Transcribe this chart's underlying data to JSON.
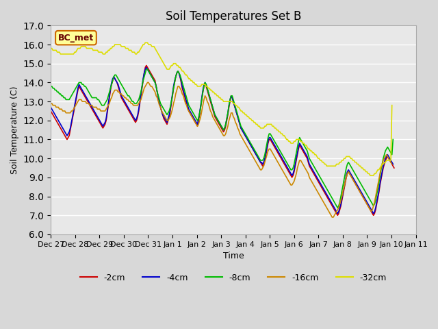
{
  "title": "Soil Temperatures Set B",
  "xlabel": "Time",
  "ylabel": "Soil Temperature (C)",
  "ylim": [
    6.0,
    17.0
  ],
  "yticks": [
    6.0,
    7.0,
    8.0,
    9.0,
    10.0,
    11.0,
    12.0,
    13.0,
    14.0,
    15.0,
    16.0,
    17.0
  ],
  "background_color": "#e8e8e8",
  "plot_bg_color": "#e8e8e8",
  "grid_color": "#ffffff",
  "annotation_text": "BC_met",
  "annotation_bg": "#ffff99",
  "annotation_border": "#cc6600",
  "annotation_text_color": "#660000",
  "colors": {
    "-2cm": "#cc0000",
    "-4cm": "#0000cc",
    "-8cm": "#00bb00",
    "-16cm": "#cc8800",
    "-32cm": "#dddd00"
  },
  "legend_labels": [
    "-2cm",
    "-4cm",
    "-8cm",
    "-16cm",
    "-32cm"
  ],
  "xtick_labels": [
    "Dec 27",
    "Dec 28",
    "Dec 29",
    "Dec 30",
    "Dec 31",
    "Jan 1",
    "Jan 2",
    "Jan 3",
    "Jan 4",
    "Jan 5",
    "Jan 6",
    "Jan 7",
    "Jan 8",
    "Jan 9",
    "Jan 10",
    "Jan 11"
  ],
  "num_points": 337,
  "series": {
    "-2cm": [
      12.5,
      12.4,
      12.3,
      12.2,
      12.1,
      12.0,
      11.9,
      11.8,
      11.7,
      11.6,
      11.5,
      11.4,
      11.3,
      11.2,
      11.1,
      11.0,
      11.1,
      11.2,
      11.5,
      11.8,
      12.1,
      12.4,
      12.7,
      13.0,
      13.3,
      13.6,
      13.8,
      13.7,
      13.6,
      13.5,
      13.4,
      13.3,
      13.2,
      13.1,
      13.0,
      12.9,
      12.8,
      12.7,
      12.6,
      12.5,
      12.4,
      12.3,
      12.2,
      12.1,
      12.0,
      11.9,
      11.8,
      11.7,
      11.6,
      11.7,
      11.8,
      12.0,
      12.4,
      12.8,
      13.2,
      13.6,
      13.9,
      14.1,
      14.3,
      14.2,
      14.1,
      14.0,
      13.8,
      13.6,
      13.4,
      13.2,
      13.1,
      13.0,
      12.9,
      12.8,
      12.7,
      12.6,
      12.5,
      12.4,
      12.3,
      12.2,
      12.1,
      12.0,
      11.9,
      12.0,
      12.2,
      12.5,
      12.9,
      13.3,
      13.7,
      14.1,
      14.5,
      14.8,
      14.9,
      14.8,
      14.7,
      14.6,
      14.5,
      14.4,
      14.3,
      14.2,
      14.1,
      13.8,
      13.5,
      13.2,
      12.9,
      12.7,
      12.5,
      12.3,
      12.1,
      12.0,
      11.9,
      11.8,
      12.0,
      12.2,
      12.5,
      12.9,
      13.3,
      13.7,
      14.0,
      14.3,
      14.5,
      14.6,
      14.5,
      14.3,
      14.0,
      13.7,
      13.5,
      13.3,
      13.1,
      12.9,
      12.7,
      12.5,
      12.4,
      12.3,
      12.2,
      12.1,
      12.0,
      11.9,
      11.8,
      11.7,
      12.0,
      12.3,
      12.7,
      13.1,
      13.5,
      13.8,
      13.9,
      13.8,
      13.6,
      13.4,
      13.2,
      13.0,
      12.8,
      12.6,
      12.4,
      12.2,
      12.1,
      12.0,
      11.9,
      11.8,
      11.7,
      11.6,
      11.5,
      11.4,
      11.5,
      11.7,
      12.0,
      12.3,
      12.7,
      13.0,
      13.3,
      13.2,
      13.0,
      12.8,
      12.6,
      12.4,
      12.2,
      12.0,
      11.8,
      11.6,
      11.5,
      11.4,
      11.3,
      11.2,
      11.1,
      11.0,
      10.9,
      10.8,
      10.7,
      10.6,
      10.5,
      10.4,
      10.3,
      10.2,
      10.1,
      10.0,
      9.9,
      9.8,
      9.7,
      9.6,
      9.7,
      9.9,
      10.2,
      10.5,
      10.8,
      11.0,
      11.0,
      10.9,
      10.8,
      10.7,
      10.6,
      10.5,
      10.4,
      10.3,
      10.2,
      10.1,
      10.0,
      9.9,
      9.8,
      9.7,
      9.6,
      9.5,
      9.4,
      9.3,
      9.2,
      9.1,
      9.0,
      9.1,
      9.3,
      9.6,
      9.9,
      10.2,
      10.5,
      10.7,
      10.6,
      10.5,
      10.4,
      10.3,
      10.2,
      10.1,
      10.0,
      9.8,
      9.6,
      9.5,
      9.4,
      9.3,
      9.2,
      9.1,
      9.0,
      8.9,
      8.8,
      8.7,
      8.6,
      8.5,
      8.4,
      8.3,
      8.2,
      8.1,
      8.0,
      7.9,
      7.8,
      7.7,
      7.6,
      7.5,
      7.4,
      7.3,
      7.2,
      7.1,
      7.0,
      7.1,
      7.3,
      7.5,
      7.8,
      8.1,
      8.4,
      8.7,
      9.0,
      9.2,
      9.3,
      9.2,
      9.1,
      9.0,
      8.9,
      8.8,
      8.7,
      8.6,
      8.5,
      8.4,
      8.3,
      8.2,
      8.1,
      8.0,
      7.9,
      7.8,
      7.7,
      7.6,
      7.5,
      7.4,
      7.3,
      7.2,
      7.1,
      7.0,
      7.1,
      7.3,
      7.6,
      7.9,
      8.2,
      8.6,
      8.9,
      9.2,
      9.5,
      9.7,
      9.9,
      10.0,
      10.1,
      10.0,
      9.9,
      9.8,
      9.7,
      9.6,
      9.5
    ],
    "-4cm": [
      12.7,
      12.6,
      12.5,
      12.4,
      12.3,
      12.2,
      12.1,
      12.0,
      11.9,
      11.8,
      11.7,
      11.6,
      11.5,
      11.4,
      11.3,
      11.2,
      11.3,
      11.4,
      11.6,
      11.9,
      12.2,
      12.5,
      12.8,
      13.1,
      13.4,
      13.7,
      13.9,
      13.8,
      13.7,
      13.6,
      13.5,
      13.4,
      13.3,
      13.2,
      13.1,
      13.0,
      12.9,
      12.8,
      12.7,
      12.6,
      12.5,
      12.4,
      12.3,
      12.2,
      12.1,
      12.0,
      11.9,
      11.8,
      11.7,
      11.8,
      11.9,
      12.1,
      12.5,
      12.9,
      13.3,
      13.7,
      14.0,
      14.2,
      14.3,
      14.2,
      14.1,
      14.0,
      13.9,
      13.7,
      13.5,
      13.3,
      13.2,
      13.1,
      13.0,
      12.9,
      12.8,
      12.7,
      12.6,
      12.5,
      12.4,
      12.3,
      12.2,
      12.1,
      12.0,
      12.1,
      12.3,
      12.6,
      13.0,
      13.4,
      13.8,
      14.2,
      14.5,
      14.7,
      14.8,
      14.7,
      14.6,
      14.5,
      14.4,
      14.3,
      14.2,
      14.1,
      14.0,
      13.8,
      13.5,
      13.2,
      12.9,
      12.7,
      12.5,
      12.3,
      12.2,
      12.1,
      12.0,
      11.9,
      12.1,
      12.3,
      12.6,
      13.0,
      13.4,
      13.8,
      14.1,
      14.3,
      14.5,
      14.6,
      14.5,
      14.3,
      14.1,
      13.8,
      13.6,
      13.4,
      13.2,
      13.0,
      12.8,
      12.6,
      12.5,
      12.4,
      12.3,
      12.2,
      12.1,
      12.0,
      11.9,
      11.8,
      12.1,
      12.4,
      12.8,
      13.2,
      13.6,
      13.9,
      14.0,
      13.9,
      13.7,
      13.5,
      13.3,
      13.1,
      12.9,
      12.7,
      12.5,
      12.3,
      12.2,
      12.1,
      12.0,
      11.9,
      11.8,
      11.7,
      11.6,
      11.5,
      11.6,
      11.8,
      12.1,
      12.4,
      12.8,
      13.1,
      13.3,
      13.2,
      13.0,
      12.8,
      12.6,
      12.4,
      12.2,
      12.0,
      11.8,
      11.6,
      11.5,
      11.4,
      11.3,
      11.2,
      11.1,
      11.0,
      10.9,
      10.8,
      10.7,
      10.6,
      10.5,
      10.4,
      10.3,
      10.2,
      10.1,
      10.0,
      9.9,
      9.8,
      9.8,
      9.7,
      9.8,
      10.0,
      10.3,
      10.6,
      10.9,
      11.1,
      11.1,
      11.0,
      10.9,
      10.8,
      10.7,
      10.6,
      10.5,
      10.4,
      10.3,
      10.2,
      10.1,
      10.0,
      9.9,
      9.8,
      9.7,
      9.6,
      9.5,
      9.4,
      9.3,
      9.2,
      9.1,
      9.2,
      9.4,
      9.7,
      10.0,
      10.3,
      10.6,
      10.8,
      10.7,
      10.6,
      10.5,
      10.4,
      10.3,
      10.2,
      10.1,
      9.9,
      9.7,
      9.6,
      9.5,
      9.4,
      9.3,
      9.2,
      9.1,
      9.0,
      8.9,
      8.8,
      8.7,
      8.6,
      8.5,
      8.4,
      8.3,
      8.2,
      8.1,
      8.0,
      7.9,
      7.8,
      7.7,
      7.6,
      7.5,
      7.4,
      7.3,
      7.2,
      7.1,
      7.2,
      7.4,
      7.6,
      7.9,
      8.2,
      8.5,
      8.8,
      9.1,
      9.3,
      9.4,
      9.3,
      9.2,
      9.1,
      9.0,
      8.9,
      8.8,
      8.7,
      8.6,
      8.5,
      8.4,
      8.3,
      8.2,
      8.1,
      8.0,
      7.9,
      7.8,
      7.7,
      7.6,
      7.5,
      7.4,
      7.3,
      7.2,
      7.1,
      7.2,
      7.4,
      7.7,
      8.0,
      8.3,
      8.7,
      9.0,
      9.3,
      9.6,
      9.8,
      10.0,
      10.1,
      10.2,
      10.1,
      10.0,
      9.9,
      9.8,
      9.7
    ],
    "-8cm": [
      13.8,
      13.8,
      13.7,
      13.7,
      13.6,
      13.6,
      13.5,
      13.5,
      13.4,
      13.4,
      13.3,
      13.3,
      13.2,
      13.2,
      13.1,
      13.1,
      13.1,
      13.1,
      13.2,
      13.3,
      13.4,
      13.5,
      13.6,
      13.7,
      13.8,
      13.9,
      14.0,
      14.0,
      14.0,
      13.9,
      13.9,
      13.8,
      13.8,
      13.7,
      13.6,
      13.5,
      13.4,
      13.3,
      13.2,
      13.2,
      13.2,
      13.2,
      13.2,
      13.1,
      13.1,
      13.0,
      12.9,
      12.8,
      12.8,
      12.8,
      12.9,
      13.0,
      13.1,
      13.3,
      13.5,
      13.7,
      13.9,
      14.1,
      14.3,
      14.4,
      14.4,
      14.3,
      14.2,
      14.1,
      14.0,
      13.9,
      13.8,
      13.7,
      13.6,
      13.5,
      13.4,
      13.3,
      13.3,
      13.2,
      13.1,
      13.0,
      13.0,
      12.9,
      12.9,
      12.9,
      13.0,
      13.1,
      13.3,
      13.5,
      13.8,
      14.1,
      14.3,
      14.5,
      14.7,
      14.7,
      14.6,
      14.5,
      14.4,
      14.3,
      14.2,
      14.1,
      14.0,
      13.8,
      13.5,
      13.3,
      13.1,
      12.9,
      12.8,
      12.7,
      12.6,
      12.5,
      12.4,
      12.3,
      12.4,
      12.5,
      12.7,
      13.0,
      13.3,
      13.7,
      14.0,
      14.3,
      14.5,
      14.6,
      14.5,
      14.4,
      14.2,
      14.0,
      13.8,
      13.6,
      13.4,
      13.2,
      13.0,
      12.8,
      12.7,
      12.6,
      12.5,
      12.4,
      12.3,
      12.2,
      12.1,
      12.0,
      12.1,
      12.4,
      12.7,
      13.1,
      13.5,
      13.8,
      14.0,
      13.9,
      13.7,
      13.5,
      13.3,
      13.1,
      12.9,
      12.7,
      12.5,
      12.3,
      12.2,
      12.1,
      12.0,
      11.9,
      11.8,
      11.7,
      11.6,
      11.5,
      11.6,
      11.8,
      12.1,
      12.4,
      12.8,
      13.1,
      13.3,
      13.3,
      13.1,
      12.9,
      12.7,
      12.5,
      12.3,
      12.1,
      11.9,
      11.7,
      11.6,
      11.5,
      11.4,
      11.3,
      11.2,
      11.1,
      11.0,
      10.9,
      10.8,
      10.7,
      10.6,
      10.5,
      10.4,
      10.3,
      10.2,
      10.1,
      10.0,
      9.9,
      9.9,
      9.9,
      10.0,
      10.2,
      10.5,
      10.8,
      11.1,
      11.3,
      11.3,
      11.2,
      11.1,
      11.0,
      10.9,
      10.8,
      10.7,
      10.6,
      10.5,
      10.4,
      10.3,
      10.2,
      10.1,
      10.0,
      9.9,
      9.8,
      9.7,
      9.6,
      9.5,
      9.4,
      9.4,
      9.5,
      9.7,
      10.0,
      10.3,
      10.6,
      10.9,
      11.1,
      11.0,
      10.9,
      10.8,
      10.7,
      10.6,
      10.5,
      10.4,
      10.2,
      10.0,
      9.9,
      9.8,
      9.7,
      9.6,
      9.5,
      9.4,
      9.3,
      9.2,
      9.1,
      9.0,
      8.9,
      8.8,
      8.7,
      8.6,
      8.5,
      8.4,
      8.3,
      8.2,
      8.1,
      8.0,
      7.9,
      7.8,
      7.7,
      7.6,
      7.5,
      7.4,
      7.5,
      7.7,
      8.0,
      8.3,
      8.6,
      8.9,
      9.2,
      9.5,
      9.7,
      9.8,
      9.7,
      9.6,
      9.5,
      9.4,
      9.3,
      9.2,
      9.1,
      9.0,
      8.9,
      8.8,
      8.7,
      8.6,
      8.5,
      8.4,
      8.3,
      8.2,
      8.1,
      8.0,
      7.9,
      7.8,
      7.7,
      7.6,
      7.5,
      7.6,
      7.8,
      8.1,
      8.4,
      8.7,
      9.1,
      9.4,
      9.7,
      10.0,
      10.2,
      10.4,
      10.5,
      10.6,
      10.5,
      10.4,
      10.3,
      10.2,
      11.0
    ],
    "-16cm": [
      12.9,
      12.9,
      12.8,
      12.8,
      12.8,
      12.7,
      12.7,
      12.7,
      12.6,
      12.6,
      12.6,
      12.5,
      12.5,
      12.5,
      12.4,
      12.4,
      12.4,
      12.4,
      12.4,
      12.5,
      12.5,
      12.6,
      12.7,
      12.8,
      12.9,
      13.0,
      13.1,
      13.1,
      13.1,
      13.0,
      13.0,
      13.0,
      13.0,
      12.9,
      12.9,
      12.9,
      12.8,
      12.8,
      12.8,
      12.7,
      12.7,
      12.7,
      12.7,
      12.6,
      12.6,
      12.6,
      12.5,
      12.5,
      12.5,
      12.5,
      12.5,
      12.6,
      12.7,
      12.8,
      12.9,
      13.1,
      13.2,
      13.4,
      13.5,
      13.6,
      13.6,
      13.6,
      13.5,
      13.5,
      13.4,
      13.4,
      13.3,
      13.3,
      13.2,
      13.2,
      13.1,
      13.1,
      13.0,
      13.0,
      12.9,
      12.9,
      12.8,
      12.8,
      12.8,
      12.8,
      12.8,
      12.9,
      13.0,
      13.1,
      13.3,
      13.5,
      13.7,
      13.8,
      13.9,
      14.0,
      14.0,
      13.9,
      13.8,
      13.8,
      13.7,
      13.6,
      13.5,
      13.3,
      13.2,
      13.0,
      12.8,
      12.7,
      12.5,
      12.4,
      12.3,
      12.2,
      12.1,
      12.0,
      12.0,
      12.1,
      12.2,
      12.4,
      12.6,
      12.9,
      13.1,
      13.4,
      13.6,
      13.8,
      13.8,
      13.7,
      13.6,
      13.4,
      13.3,
      13.1,
      12.9,
      12.8,
      12.6,
      12.5,
      12.4,
      12.3,
      12.2,
      12.1,
      12.0,
      11.9,
      11.8,
      11.7,
      11.8,
      12.0,
      12.2,
      12.5,
      12.8,
      13.1,
      13.3,
      13.2,
      13.0,
      12.9,
      12.7,
      12.5,
      12.4,
      12.2,
      12.1,
      12.0,
      11.9,
      11.8,
      11.7,
      11.6,
      11.5,
      11.4,
      11.3,
      11.2,
      11.2,
      11.3,
      11.5,
      11.7,
      12.0,
      12.2,
      12.4,
      12.4,
      12.2,
      12.1,
      11.9,
      11.8,
      11.6,
      11.5,
      11.3,
      11.2,
      11.1,
      11.0,
      10.9,
      10.8,
      10.7,
      10.6,
      10.5,
      10.4,
      10.3,
      10.2,
      10.1,
      10.0,
      9.9,
      9.8,
      9.7,
      9.6,
      9.5,
      9.4,
      9.4,
      9.5,
      9.6,
      9.8,
      10.0,
      10.2,
      10.4,
      10.5,
      10.5,
      10.4,
      10.3,
      10.2,
      10.1,
      10.0,
      9.9,
      9.8,
      9.7,
      9.6,
      9.5,
      9.4,
      9.3,
      9.2,
      9.1,
      9.0,
      8.9,
      8.8,
      8.7,
      8.6,
      8.6,
      8.7,
      8.8,
      9.0,
      9.2,
      9.5,
      9.7,
      9.9,
      9.9,
      9.8,
      9.7,
      9.6,
      9.5,
      9.4,
      9.3,
      9.2,
      9.0,
      8.9,
      8.8,
      8.7,
      8.6,
      8.5,
      8.4,
      8.3,
      8.2,
      8.1,
      8.0,
      7.9,
      7.8,
      7.7,
      7.6,
      7.5,
      7.4,
      7.3,
      7.2,
      7.1,
      7.0,
      6.9,
      6.9,
      7.0,
      7.1,
      7.2,
      7.3,
      7.4,
      7.6,
      7.8,
      8.0,
      8.3,
      8.5,
      8.8,
      9.0,
      9.2,
      9.3,
      9.2,
      9.1,
      9.0,
      8.9,
      8.8,
      8.7,
      8.6,
      8.5,
      8.4,
      8.3,
      8.2,
      8.1,
      8.0,
      7.9,
      7.8,
      7.7,
      7.6,
      7.5,
      7.4,
      7.3,
      7.2,
      7.3,
      7.5,
      7.7,
      8.0,
      8.3,
      8.6,
      8.9,
      9.2,
      9.5,
      9.7,
      9.9,
      10.0,
      10.1,
      10.2,
      10.1,
      10.0,
      9.9,
      9.8,
      9.7
    ],
    "-32cm": [
      15.8,
      15.8,
      15.7,
      15.7,
      15.7,
      15.7,
      15.6,
      15.6,
      15.6,
      15.5,
      15.5,
      15.5,
      15.5,
      15.5,
      15.5,
      15.5,
      15.5,
      15.5,
      15.5,
      15.5,
      15.5,
      15.5,
      15.6,
      15.6,
      15.7,
      15.8,
      15.8,
      15.8,
      15.9,
      15.9,
      15.9,
      15.9,
      15.9,
      15.8,
      15.8,
      15.8,
      15.8,
      15.8,
      15.8,
      15.7,
      15.7,
      15.7,
      15.7,
      15.7,
      15.6,
      15.6,
      15.6,
      15.6,
      15.5,
      15.5,
      15.5,
      15.6,
      15.6,
      15.7,
      15.7,
      15.8,
      15.8,
      15.9,
      15.9,
      16.0,
      16.0,
      16.0,
      16.0,
      16.0,
      16.0,
      15.9,
      15.9,
      15.9,
      15.9,
      15.8,
      15.8,
      15.8,
      15.7,
      15.7,
      15.7,
      15.6,
      15.6,
      15.6,
      15.5,
      15.5,
      15.6,
      15.6,
      15.7,
      15.8,
      15.9,
      16.0,
      16.0,
      16.1,
      16.1,
      16.1,
      16.0,
      16.0,
      16.0,
      15.9,
      15.9,
      15.9,
      15.8,
      15.7,
      15.6,
      15.5,
      15.4,
      15.3,
      15.2,
      15.1,
      15.0,
      14.9,
      14.8,
      14.7,
      14.7,
      14.7,
      14.8,
      14.9,
      14.9,
      15.0,
      15.0,
      15.0,
      14.9,
      14.9,
      14.8,
      14.8,
      14.7,
      14.6,
      14.6,
      14.5,
      14.4,
      14.4,
      14.3,
      14.2,
      14.2,
      14.1,
      14.1,
      14.0,
      14.0,
      13.9,
      13.9,
      13.8,
      13.8,
      13.8,
      13.8,
      13.9,
      13.9,
      13.9,
      13.9,
      13.8,
      13.8,
      13.7,
      13.7,
      13.6,
      13.6,
      13.5,
      13.5,
      13.4,
      13.4,
      13.3,
      13.3,
      13.2,
      13.2,
      13.1,
      13.1,
      13.0,
      13.0,
      13.0,
      13.0,
      13.0,
      13.0,
      13.0,
      13.0,
      13.0,
      12.9,
      12.9,
      12.8,
      12.8,
      12.7,
      12.7,
      12.6,
      12.5,
      12.5,
      12.4,
      12.4,
      12.3,
      12.3,
      12.2,
      12.2,
      12.1,
      12.1,
      12.0,
      12.0,
      11.9,
      11.9,
      11.8,
      11.8,
      11.7,
      11.7,
      11.6,
      11.6,
      11.6,
      11.6,
      11.7,
      11.7,
      11.8,
      11.8,
      11.8,
      11.8,
      11.8,
      11.7,
      11.7,
      11.6,
      11.6,
      11.5,
      11.5,
      11.4,
      11.4,
      11.3,
      11.3,
      11.2,
      11.2,
      11.1,
      11.0,
      11.0,
      10.9,
      10.9,
      10.8,
      10.8,
      10.8,
      10.9,
      10.9,
      11.0,
      11.0,
      11.0,
      11.0,
      10.9,
      10.9,
      10.8,
      10.8,
      10.7,
      10.7,
      10.6,
      10.5,
      10.5,
      10.4,
      10.4,
      10.3,
      10.3,
      10.2,
      10.2,
      10.1,
      10.0,
      10.0,
      9.9,
      9.9,
      9.8,
      9.8,
      9.7,
      9.7,
      9.6,
      9.6,
      9.6,
      9.6,
      9.6,
      9.6,
      9.6,
      9.6,
      9.6,
      9.7,
      9.7,
      9.7,
      9.8,
      9.8,
      9.9,
      9.9,
      10.0,
      10.0,
      10.1,
      10.1,
      10.1,
      10.1,
      10.0,
      10.0,
      9.9,
      9.9,
      9.8,
      9.8,
      9.7,
      9.7,
      9.6,
      9.6,
      9.5,
      9.5,
      9.4,
      9.4,
      9.3,
      9.3,
      9.2,
      9.2,
      9.1,
      9.1,
      9.1,
      9.1,
      9.2,
      9.2,
      9.3,
      9.4,
      9.4,
      9.5,
      9.6,
      9.7,
      9.7,
      9.8,
      9.8,
      9.9,
      9.9,
      9.9,
      9.9,
      9.9,
      12.8
    ]
  }
}
